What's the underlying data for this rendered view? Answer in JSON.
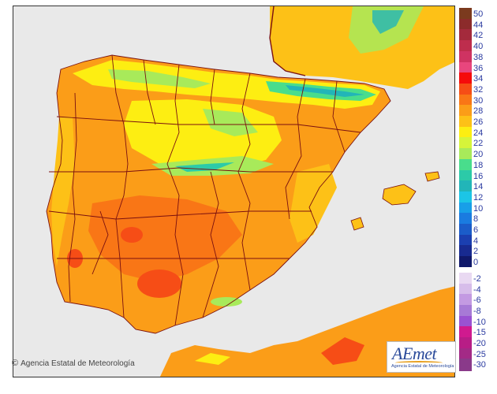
{
  "credit": {
    "text": "Agencia Estatal de Meteorología",
    "symbol": "©"
  },
  "logo": {
    "brand": "AEmet",
    "subtitle": "Agencia Estatal de Meteorología"
  },
  "legend": {
    "entries": [
      {
        "label": "50",
        "color": "#7b3a1e"
      },
      {
        "label": "44",
        "color": "#8c2b2b"
      },
      {
        "label": "42",
        "color": "#a42a3c"
      },
      {
        "label": "40",
        "color": "#be2d4d"
      },
      {
        "label": "38",
        "color": "#cf3362"
      },
      {
        "label": "36",
        "color": "#e8467d"
      },
      {
        "label": "34",
        "color": "#f50b0b"
      },
      {
        "label": "32",
        "color": "#f64d16"
      },
      {
        "label": "30",
        "color": "#f97616"
      },
      {
        "label": "28",
        "color": "#fb9d18"
      },
      {
        "label": "26",
        "color": "#fdc117"
      },
      {
        "label": "24",
        "color": "#fdee12"
      },
      {
        "label": "22",
        "color": "#d6f43a"
      },
      {
        "label": "20",
        "color": "#a8ea5a"
      },
      {
        "label": "18",
        "color": "#49dd8c"
      },
      {
        "label": "16",
        "color": "#2ccaa8"
      },
      {
        "label": "14",
        "color": "#22b5b8"
      },
      {
        "label": "12",
        "color": "#1cc5e6"
      },
      {
        "label": "10",
        "color": "#189fe8"
      },
      {
        "label": "8",
        "color": "#1a7be0"
      },
      {
        "label": "6",
        "color": "#1b5cc9"
      },
      {
        "label": "4",
        "color": "#1b3fb0"
      },
      {
        "label": "2",
        "color": "#182a90"
      },
      {
        "label": "0",
        "color": "#10186a"
      },
      {
        "label": "-2",
        "color": "#e9d9f2"
      },
      {
        "label": "-4",
        "color": "#d7bdea"
      },
      {
        "label": "-6",
        "color": "#c39ae2"
      },
      {
        "label": "-8",
        "color": "#a77ad6"
      },
      {
        "label": "-10",
        "color": "#9a52d2"
      },
      {
        "label": "-15",
        "color": "#d01a8f"
      },
      {
        "label": "-20",
        "color": "#b81d86"
      },
      {
        "label": "-25",
        "color": "#a32a86"
      },
      {
        "label": "-30",
        "color": "#8a3a8a"
      }
    ]
  },
  "colors": {
    "sea": "#e9e9e9",
    "border": "#7a1010"
  }
}
